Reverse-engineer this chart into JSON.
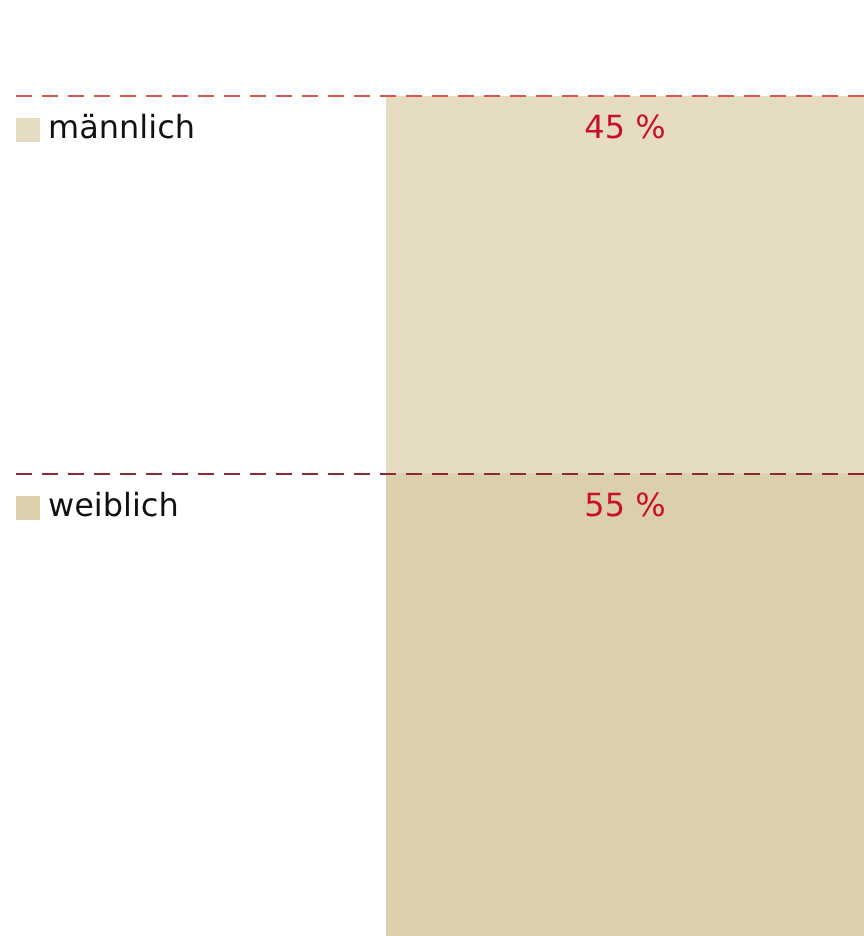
{
  "chart_data": {
    "type": "bar",
    "stacked": true,
    "categories": [
      null
    ],
    "series": [
      {
        "name": "weiblich",
        "color": "#dccfac",
        "values": [
          55
        ],
        "value_labels": [
          "55 %"
        ]
      },
      {
        "name": "männlich",
        "color": "#e6dcc2",
        "values": [
          45
        ],
        "value_labels": [
          "45 %"
        ]
      }
    ],
    "ref_lines": [
      {
        "axis": "y",
        "value": 100,
        "color": "#d9534f",
        "line_style": "dashed"
      },
      {
        "axis": "y",
        "value": 55,
        "color": "#8a2a35",
        "line_style": "dashed"
      }
    ],
    "legend": "left",
    "tick_labels": false
  }
}
